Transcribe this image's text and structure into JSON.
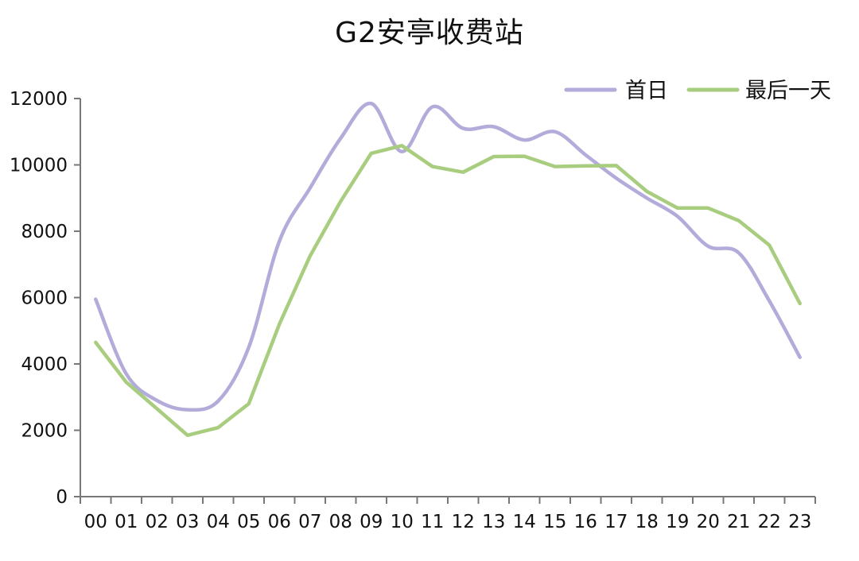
{
  "chart_data": {
    "type": "line",
    "title": "G2安亭收费站",
    "xlabel": "",
    "ylabel": "",
    "categories": [
      "00",
      "01",
      "02",
      "03",
      "04",
      "05",
      "06",
      "07",
      "08",
      "09",
      "10",
      "11",
      "12",
      "13",
      "14",
      "15",
      "16",
      "17",
      "18",
      "19",
      "20",
      "21",
      "22",
      "23"
    ],
    "ylim": [
      0,
      12000
    ],
    "yticks": [
      0,
      2000,
      4000,
      6000,
      8000,
      10000,
      12000
    ],
    "grid": false,
    "legend_position": "top-right",
    "series": [
      {
        "name": "首日",
        "color": "#b3acdb",
        "smooth": true,
        "values": [
          5950,
          3700,
          2900,
          2620,
          2880,
          4500,
          7700,
          9300,
          10800,
          11850,
          10400,
          11750,
          11100,
          11150,
          10750,
          11000,
          10300,
          9600,
          9000,
          8450,
          7550,
          7350,
          5900,
          4200
        ]
      },
      {
        "name": "最后一天",
        "color": "#a9cd7f",
        "smooth": false,
        "values": [
          4650,
          3450,
          2650,
          1850,
          2080,
          2800,
          5200,
          7250,
          8900,
          10350,
          10580,
          9950,
          9780,
          10250,
          10260,
          9950,
          9970,
          9980,
          9200,
          8700,
          8700,
          8320,
          7580,
          5820
        ]
      }
    ]
  }
}
